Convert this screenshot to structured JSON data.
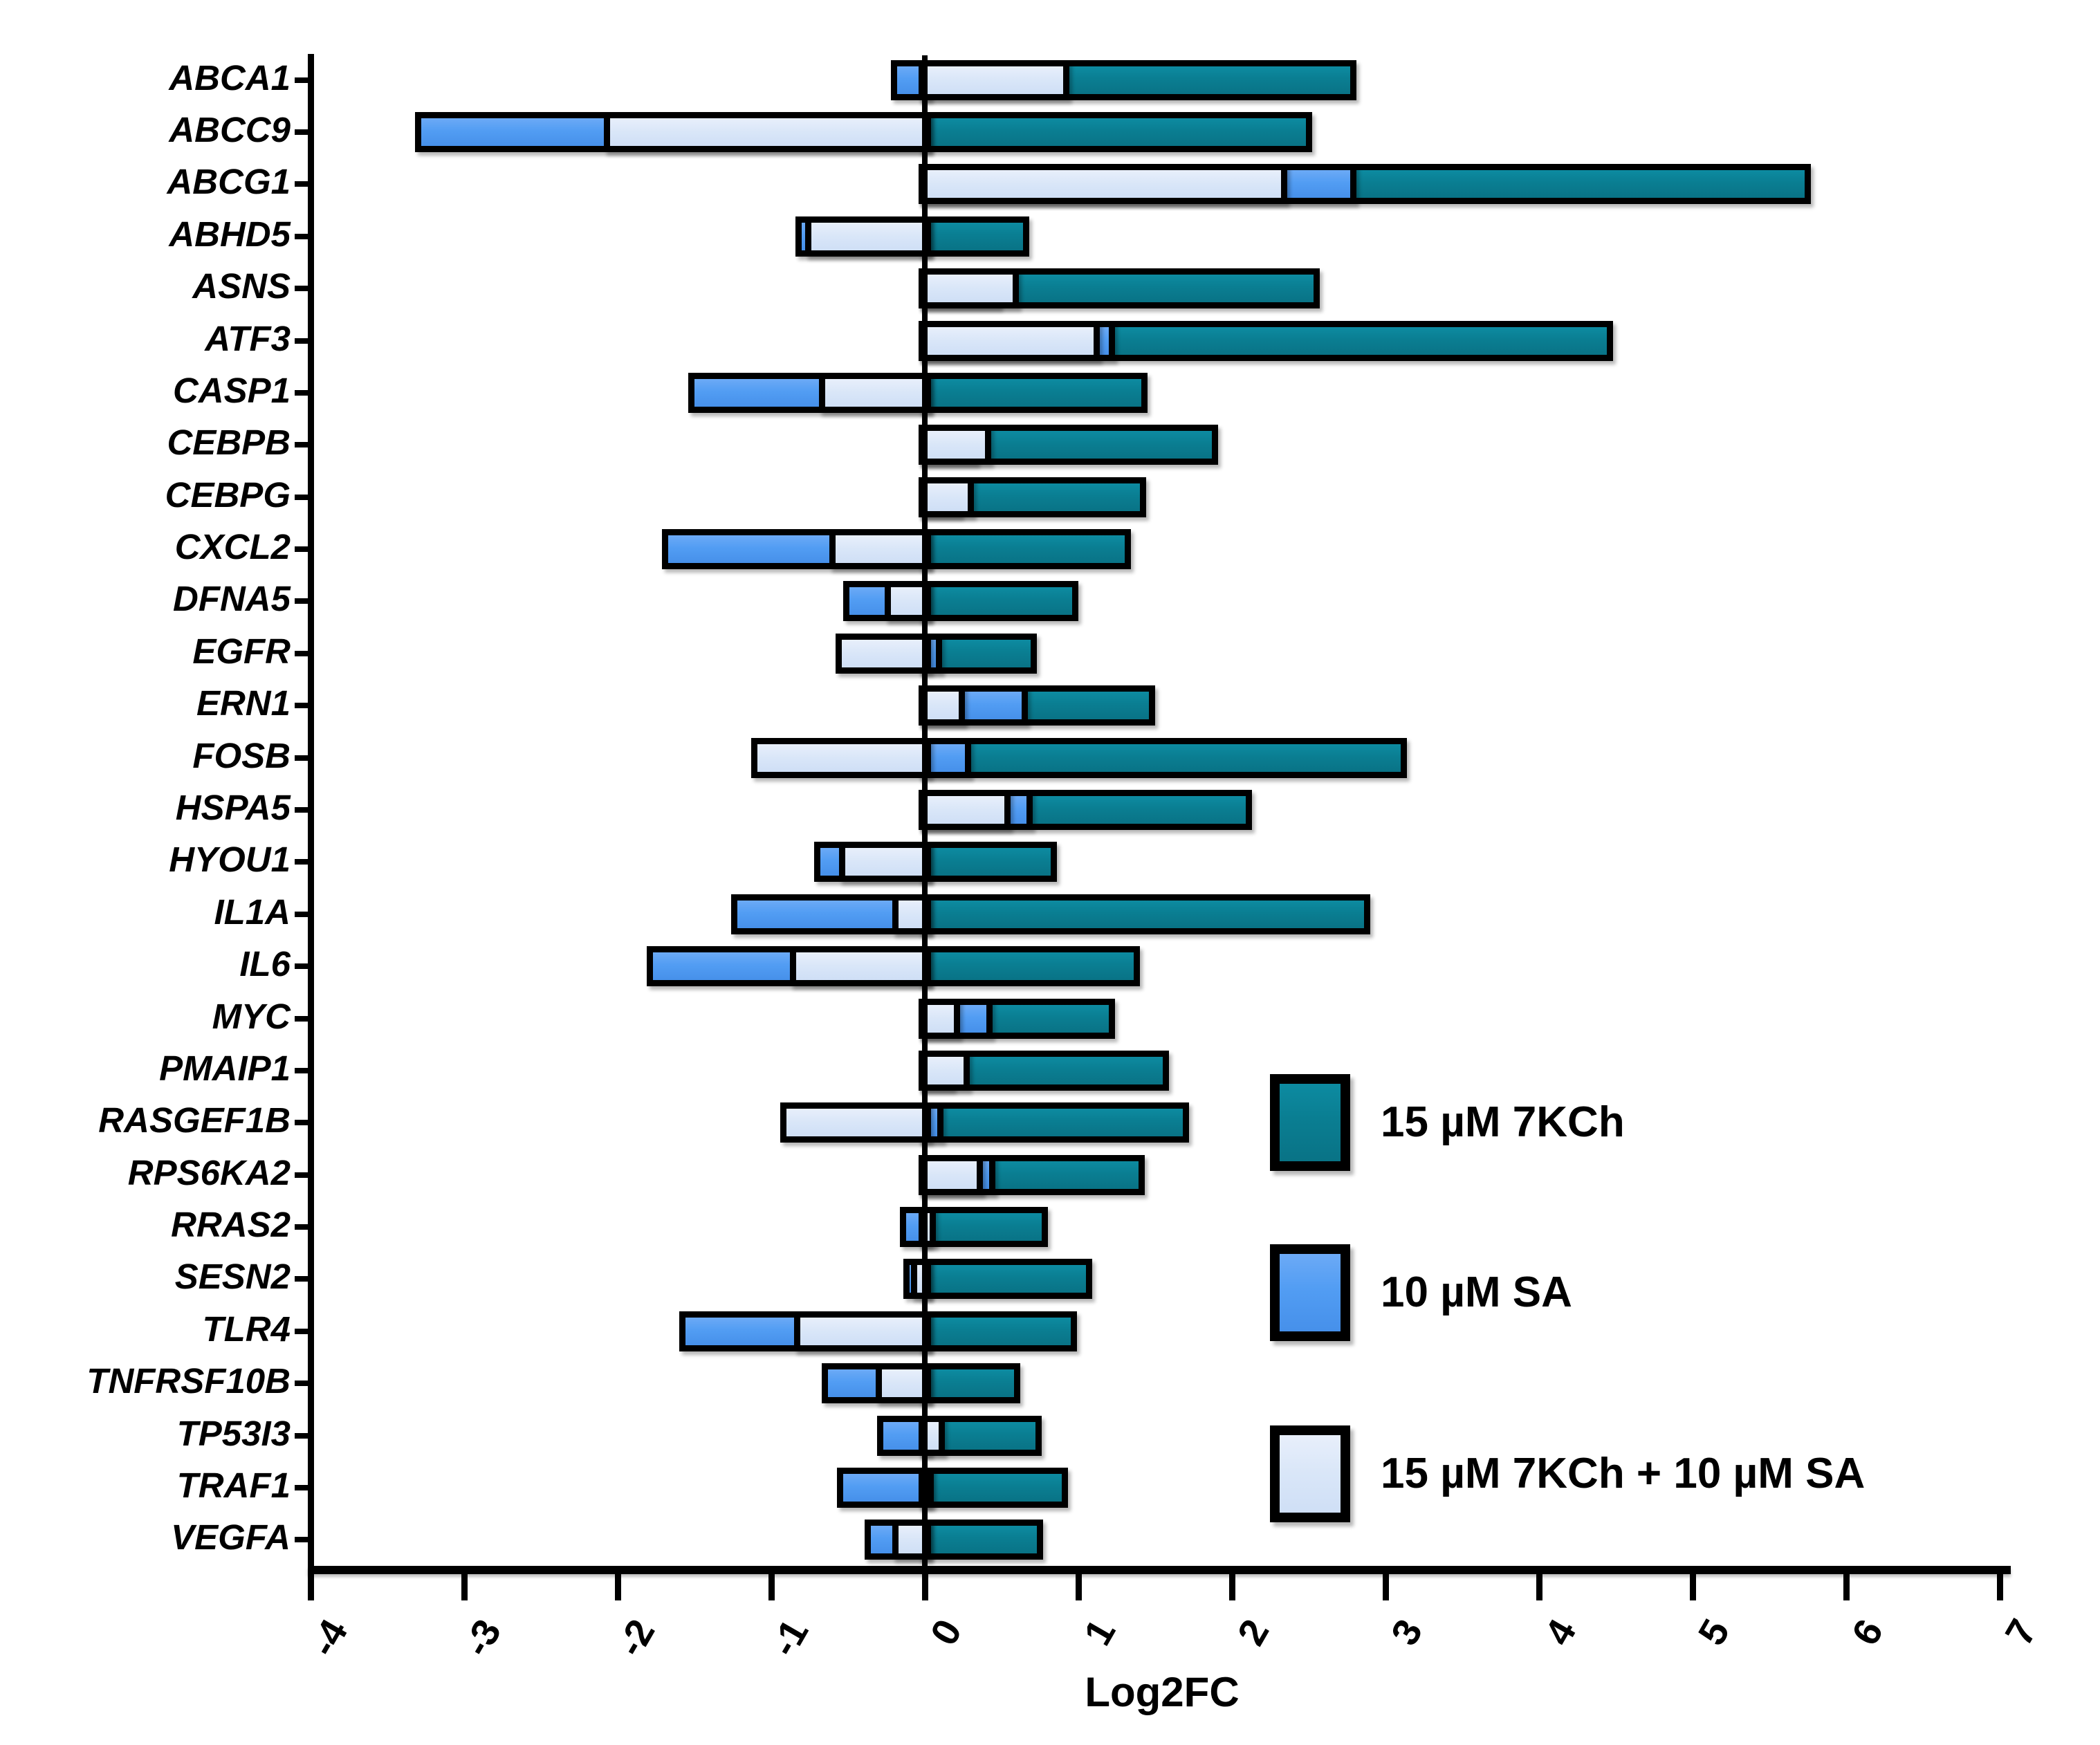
{
  "chart_data": {
    "type": "bar",
    "orientation": "horizontal",
    "title": "",
    "xlabel": "Log2FC",
    "xlim": [
      -4,
      7
    ],
    "xticks": [
      -4,
      -3,
      -2,
      -1,
      0,
      1,
      2,
      3,
      4,
      5,
      6,
      7
    ],
    "grid": "off",
    "bar_style": "overlapped-from-zero, black outline, zero reference line",
    "legend_position": "inside-right",
    "categories": [
      "ABCA1",
      "ABCC9",
      "ABCG1",
      "ABHD5",
      "ASNS",
      "ATF3",
      "CASP1",
      "CEBPB",
      "CEBPG",
      "CXCL2",
      "DFNA5",
      "EGFR",
      "ERN1",
      "FOSB",
      "HSPA5",
      "HYOU1",
      "IL1A",
      "IL6",
      "MYC",
      "PMAIP1",
      "RASGEF1B",
      "RPS6KA2",
      "RRAS2",
      "SESN2",
      "TLR4",
      "TNFRSF10B",
      "TP53I3",
      "TRAF1",
      "VEGFA"
    ],
    "series": [
      {
        "name": "15 µM 7KCh",
        "color": "#0a7e92",
        "values": [
          2.77,
          2.48,
          5.73,
          0.64,
          2.53,
          4.44,
          1.41,
          1.87,
          1.4,
          1.3,
          0.96,
          0.69,
          1.46,
          3.1,
          2.09,
          0.82,
          2.86,
          1.36,
          1.2,
          1.55,
          1.68,
          1.39,
          0.76,
          1.05,
          0.95,
          0.58,
          0.72,
          0.89,
          0.73
        ]
      },
      {
        "name": "10 µM SA",
        "color": "#529df3",
        "values": [
          -0.18,
          -3.28,
          2.77,
          -0.8,
          0.45,
          1.2,
          -1.5,
          0.3,
          0.2,
          -1.67,
          -0.49,
          0.07,
          0.63,
          0.26,
          0.66,
          -0.68,
          -1.22,
          -1.77,
          0.4,
          0.15,
          0.08,
          0.42,
          -0.12,
          -0.1,
          -1.56,
          -0.63,
          -0.27,
          -0.53,
          -0.35
        ]
      },
      {
        "name": "15 µM 7KCh + 10 µM SA",
        "color": "#d9e6f8",
        "values": [
          0.9,
          -2.05,
          2.32,
          -0.74,
          0.57,
          1.1,
          -0.65,
          0.39,
          0.28,
          -0.58,
          -0.22,
          -0.54,
          0.22,
          -1.09,
          0.52,
          -0.52,
          -0.17,
          -0.84,
          0.19,
          0.25,
          -0.9,
          0.34,
          0.03,
          -0.05,
          -0.81,
          -0.28,
          0.09,
          0.02,
          -0.17
        ]
      }
    ],
    "axis_color": "#000000",
    "background_color": "#ffffff"
  }
}
